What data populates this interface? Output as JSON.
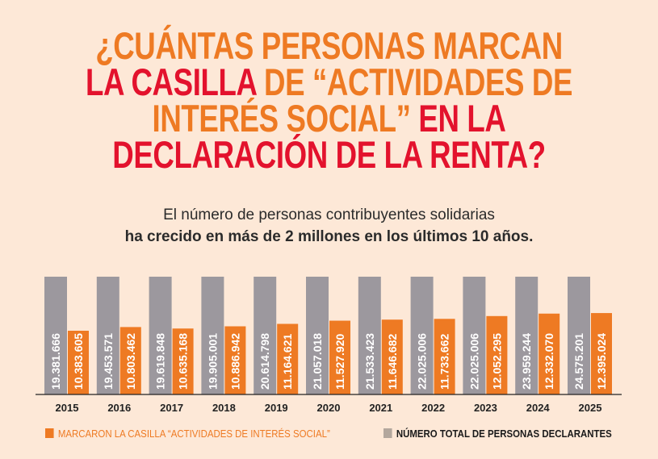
{
  "title": {
    "line1": [
      {
        "text": "¿CUÁNTAS PERSONAS MARCAN",
        "color": "orange"
      }
    ],
    "line2": [
      {
        "text": "LA CASILLA",
        "color": "red"
      },
      {
        "text": " DE “ACTIVIDADES DE",
        "color": "orange"
      }
    ],
    "line3": [
      {
        "text": "INTERÉS SOCIAL”",
        "color": "orange"
      },
      {
        "text": " EN LA",
        "color": "red"
      }
    ],
    "line4": [
      {
        "text": "DECLARACIÓN DE LA RENTA?",
        "color": "red"
      }
    ]
  },
  "subtitle": {
    "line1": "El número de personas contribuyentes solidarias",
    "line2": "ha crecido en más de 2 millones en los últimos 10 años."
  },
  "colors": {
    "orange": "#EE7A23",
    "red": "#E3122D",
    "gray": "#9C989E",
    "background": "#FDE8D7",
    "legend_gray": "#B3A79D"
  },
  "chart_data": {
    "type": "bar",
    "categories": [
      "2015",
      "2016",
      "2017",
      "2018",
      "2019",
      "2020",
      "2021",
      "2022",
      "2023",
      "2024",
      "2025"
    ],
    "series": [
      {
        "name": "NÚMERO TOTAL DE PERSONAS DECLARANTES",
        "color": "#9C989E",
        "values": [
          19381666,
          19453571,
          19619848,
          19905001,
          20614798,
          21057018,
          21533423,
          22025006,
          22025006,
          23959244,
          24575201
        ],
        "labels": [
          "19.381.666",
          "19.453.571",
          "19.619.848",
          "19.905.001",
          "20.614.798",
          "21.057.018",
          "21.533.423",
          "22.025.006",
          "22.025.006",
          "23.959.244",
          "24.575.201"
        ]
      },
      {
        "name": "MARCARON LA CASILLA “ACTIVIDADES DE INTERÉS SOCIAL”",
        "color": "#EE7A23",
        "values": [
          10383605,
          10803462,
          10635168,
          10886942,
          11164621,
          11527920,
          11646682,
          11733662,
          12052295,
          12332070,
          12395024
        ],
        "labels": [
          "10.383.605",
          "10.803.462",
          "10.635.168",
          "10.886.942",
          "11.164.621",
          "11.527.920",
          "11.646.682",
          "11.733.662",
          "12.052.295",
          "12.332.070",
          "12.395.024"
        ]
      }
    ],
    "legend": "bottom",
    "grid": false
  }
}
